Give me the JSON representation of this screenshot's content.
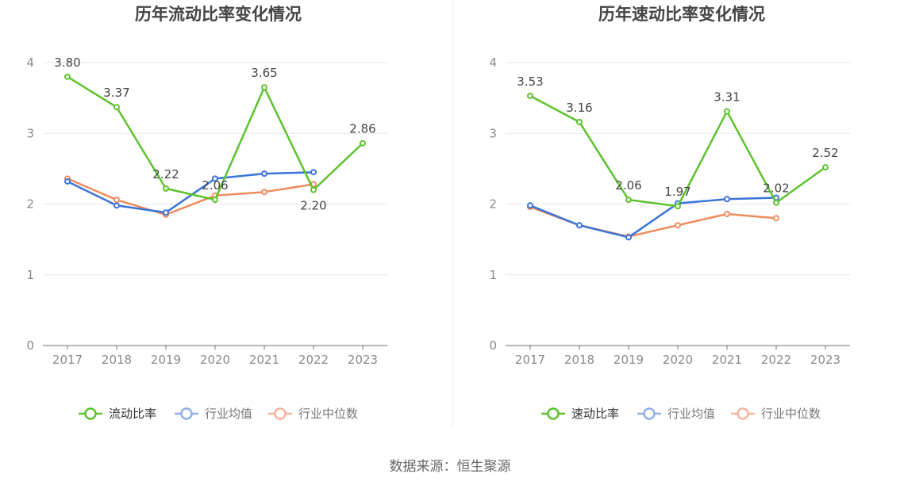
{
  "chart_data": [
    {
      "type": "line",
      "title": "历年流动比率变化情况",
      "categories": [
        "2017",
        "2018",
        "2019",
        "2020",
        "2021",
        "2022",
        "2023"
      ],
      "yticks": [
        "0",
        "1",
        "2",
        "3",
        "4"
      ],
      "ylim": [
        0,
        4
      ],
      "series": [
        {
          "name": "流动比率",
          "color": "#5cc22d",
          "values": [
            3.8,
            3.37,
            2.22,
            2.06,
            3.65,
            2.2,
            2.86
          ],
          "labels": [
            "3.80",
            "3.37",
            "2.22",
            "2.06",
            "3.65",
            "2.20",
            "2.86"
          ]
        },
        {
          "name": "行业均值",
          "color": "#3a74d9",
          "legend_color": "#8fb0ea",
          "values": [
            2.32,
            1.98,
            1.88,
            2.36,
            2.43,
            2.45,
            null
          ]
        },
        {
          "name": "行业中位数",
          "color": "#f08b5e",
          "legend_color": "#f5b49a",
          "values": [
            2.36,
            2.06,
            1.85,
            2.12,
            2.17,
            2.28,
            null
          ]
        }
      ]
    },
    {
      "type": "line",
      "title": "历年速动比率变化情况",
      "categories": [
        "2017",
        "2018",
        "2019",
        "2020",
        "2021",
        "2022",
        "2023"
      ],
      "yticks": [
        "0",
        "1",
        "2",
        "3",
        "4"
      ],
      "ylim": [
        0,
        4
      ],
      "series": [
        {
          "name": "速动比率",
          "color": "#5cc22d",
          "values": [
            3.53,
            3.16,
            2.06,
            1.97,
            3.31,
            2.02,
            2.52
          ],
          "labels": [
            "3.53",
            "3.16",
            "2.06",
            "1.97",
            "3.31",
            "2.02",
            "2.52"
          ]
        },
        {
          "name": "行业均值",
          "color": "#3a74d9",
          "legend_color": "#8fb0ea",
          "values": [
            1.98,
            1.7,
            1.53,
            2.01,
            2.07,
            2.09,
            null
          ]
        },
        {
          "name": "行业中位数",
          "color": "#f08b5e",
          "legend_color": "#f5b49a",
          "values": [
            1.96,
            1.7,
            1.54,
            1.7,
            1.86,
            1.8,
            null
          ]
        }
      ]
    }
  ],
  "footer": {
    "source": "数据来源：恒生聚源"
  }
}
